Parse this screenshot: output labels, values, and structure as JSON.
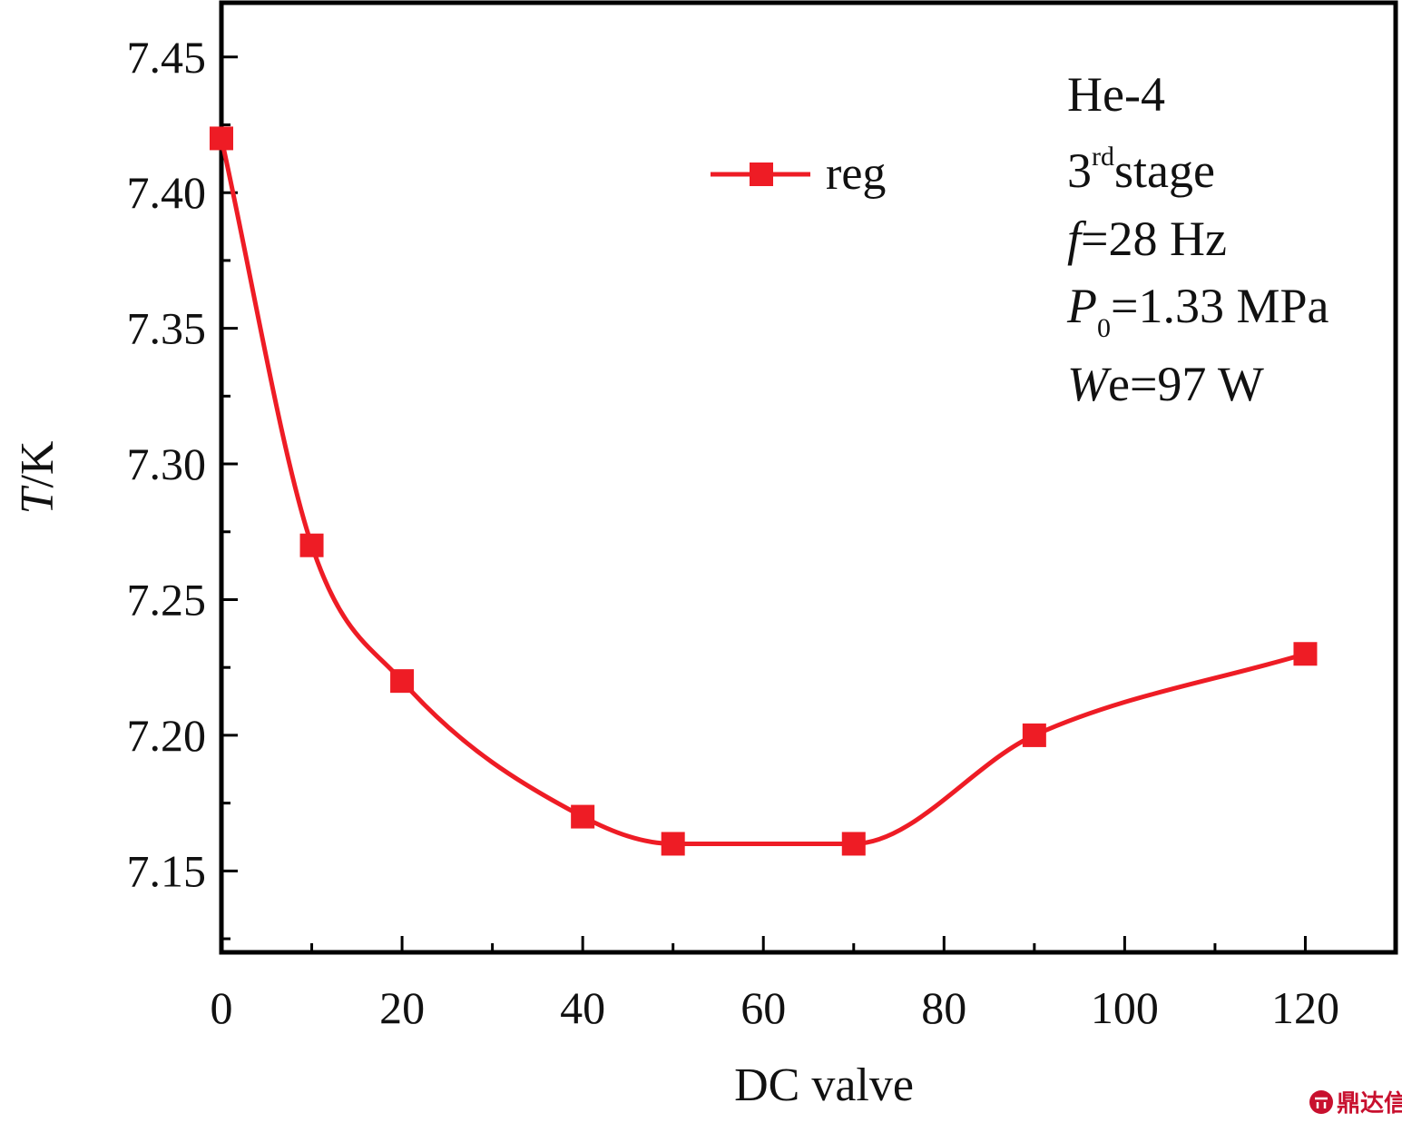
{
  "chart_data": {
    "type": "line",
    "xlabel": "DC valve",
    "ylabel": "T/K",
    "ylabel_italic": "T",
    "ylabel_rest": "/K",
    "xlim": [
      0,
      130
    ],
    "ylim": [
      7.12,
      7.47
    ],
    "xticks": [
      0,
      20,
      40,
      60,
      80,
      100,
      120
    ],
    "xtick_labels": [
      "0",
      "20",
      "40",
      "60",
      "80",
      "100",
      "120"
    ],
    "yticks": [
      7.15,
      7.2,
      7.25,
      7.3,
      7.35,
      7.4,
      7.45
    ],
    "ytick_labels": [
      "7.15",
      "7.20",
      "7.25",
      "7.30",
      "7.35",
      "7.40",
      "7.45"
    ],
    "grid": false,
    "legend_position": "top-center",
    "series": [
      {
        "name": "reg",
        "color": "#ee1c25",
        "marker": "square",
        "x": [
          0,
          10,
          20,
          40,
          50,
          70,
          90,
          120
        ],
        "y": [
          7.42,
          7.27,
          7.22,
          7.17,
          7.16,
          7.16,
          7.2,
          7.23
        ]
      }
    ],
    "annotations": {
      "fluid": "He-4",
      "stage_num": "3",
      "stage_sup": "rd",
      "stage_text": "stage",
      "freq_sym": "f",
      "freq_val": "=28 Hz",
      "pressure_sym": "P",
      "pressure_sub": "0",
      "pressure_val": "=1.33 MPa",
      "power_sym": "W",
      "power_val": "e=97 W"
    }
  },
  "watermark": {
    "text": "鼎达信",
    "color": "#c8102e"
  }
}
